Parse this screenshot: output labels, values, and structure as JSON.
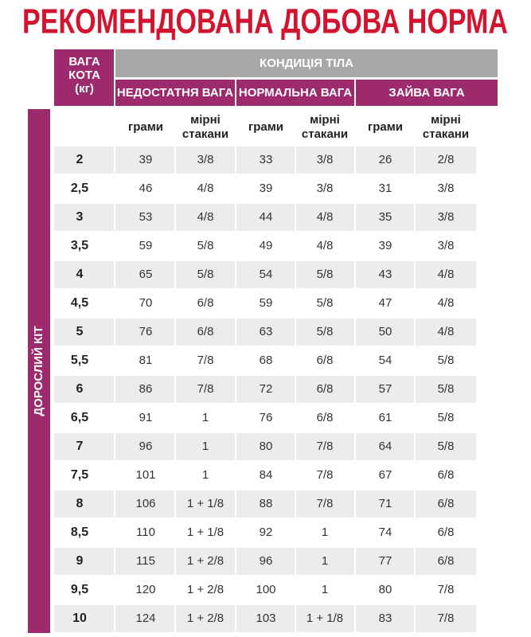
{
  "title": "РЕКОМЕНДОВАНА ДОБОВА НОРМА",
  "header": {
    "weight_label": [
      "ВАГА",
      "КОТА",
      "(кг)"
    ],
    "condition": "КОНДИЦІЯ ТІЛА",
    "groups": [
      "НЕДОСТАТНЯ ВАГА",
      "НОРМАЛЬНА ВАГА",
      "ЗАЙВА ВАГА"
    ],
    "subheaders": [
      [
        "грами"
      ],
      [
        "мірні",
        "стакани"
      ],
      [
        "грами"
      ],
      [
        "мірні",
        "стакани"
      ],
      [
        "грами"
      ],
      [
        "мірні",
        "стакани"
      ]
    ]
  },
  "side_label": "ДОРОСЛИЙ КІТ",
  "table": {
    "rows": [
      [
        "2",
        39,
        "3/8",
        33,
        "3/8",
        26,
        "2/8"
      ],
      [
        "2,5",
        46,
        "4/8",
        39,
        "3/8",
        31,
        "3/8"
      ],
      [
        "3",
        53,
        "4/8",
        44,
        "4/8",
        35,
        "3/8"
      ],
      [
        "3,5",
        59,
        "5/8",
        49,
        "4/8",
        39,
        "3/8"
      ],
      [
        "4",
        65,
        "5/8",
        54,
        "5/8",
        43,
        "4/8"
      ],
      [
        "4,5",
        70,
        "6/8",
        59,
        "5/8",
        47,
        "4/8"
      ],
      [
        "5",
        76,
        "6/8",
        63,
        "5/8",
        50,
        "4/8"
      ],
      [
        "5,5",
        81,
        "7/8",
        68,
        "6/8",
        54,
        "5/8"
      ],
      [
        "6",
        86,
        "7/8",
        72,
        "6/8",
        57,
        "5/8"
      ],
      [
        "6,5",
        91,
        "1",
        76,
        "6/8",
        61,
        "5/8"
      ],
      [
        "7",
        96,
        "1",
        80,
        "7/8",
        64,
        "5/8"
      ],
      [
        "7,5",
        101,
        "1",
        84,
        "7/8",
        67,
        "6/8"
      ],
      [
        "8",
        106,
        "1 + 1/8",
        88,
        "7/8",
        71,
        "6/8"
      ],
      [
        "8,5",
        110,
        "1 + 1/8",
        92,
        "1",
        74,
        "6/8"
      ],
      [
        "9",
        115,
        "1 + 2/8",
        96,
        "1",
        77,
        "6/8"
      ],
      [
        "9,5",
        120,
        "1 + 2/8",
        100,
        "1",
        80,
        "7/8"
      ],
      [
        "10",
        124,
        "1 + 2/8",
        103,
        "1 + 1/8",
        83,
        "7/8"
      ]
    ]
  }
}
